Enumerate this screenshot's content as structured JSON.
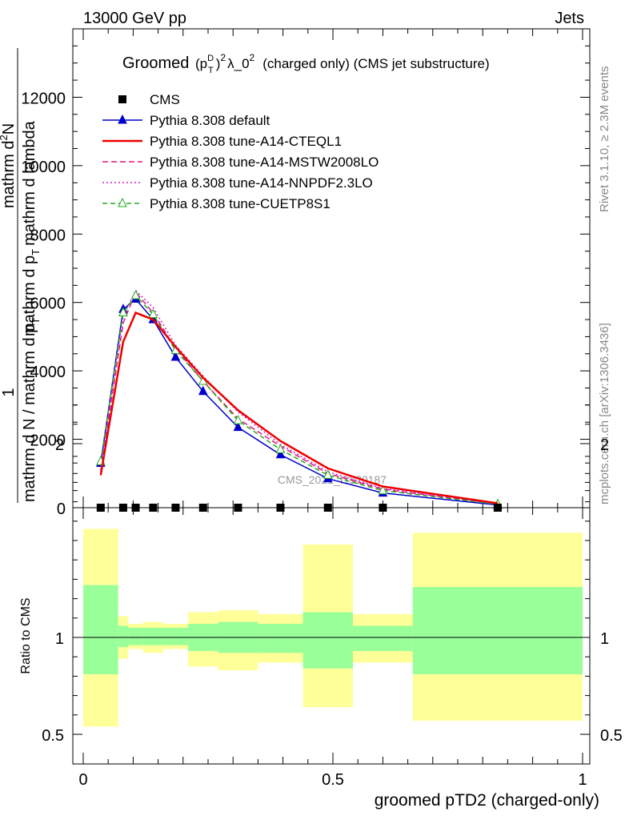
{
  "header": {
    "left": "13000 GeV pp",
    "right": "Jets"
  },
  "side": {
    "rivet": "Rivet 3.1.10, ≥ 2.3M events",
    "mcplots": "mcplots.cern.ch [arXiv:1306.3436]"
  },
  "watermark": "CMS_2021_I1920187",
  "chart_data": [
    {
      "type": "line",
      "panel": "main",
      "title": "Groomed (p_T^D)^2 λ_0^2 (charged only) (CMS jet substructure)",
      "title_parts": {
        "groomed": "Groomed",
        "p": "(p",
        "sup_d": "D",
        "sub_t": "T",
        "close": ")",
        "sup_2": "2",
        "lambda": "λ_0",
        "rest": "(charged only) (CMS jet substructure)"
      },
      "ylabel": "1 / mathrm d N / mathrm d p_T mathrm d p_T mathrm d lambda mathrm d^2N",
      "ylabel_parts": {
        "one": "1",
        "denominator": "mathrm d N / mathrm d p",
        "denominator_sub": "T",
        "numerator_a": "mathrm d",
        "numerator_sup": "2",
        "numerator_b": "N",
        "overlay_a": "mathrm d p",
        "overlay_sub": "T",
        "overlay_b": "mathrm d lambda"
      },
      "ylim": [
        0,
        14000
      ],
      "yticks": [
        "0",
        "2000",
        "4000",
        "6000",
        "8000",
        "10000",
        "12000"
      ],
      "x": [
        0.035,
        0.08,
        0.105,
        0.14,
        0.185,
        0.24,
        0.31,
        0.395,
        0.49,
        0.6,
        0.83
      ],
      "series": [
        {
          "name": "CMS",
          "marker": "square",
          "color": "#000000",
          "values": [
            0,
            0,
            0,
            0,
            0,
            0,
            0,
            0,
            0,
            0,
            0
          ]
        },
        {
          "name": "Pythia 8.308 default",
          "marker": "triangle",
          "color": "#0000cc",
          "dash": "",
          "values": [
            1300,
            5800,
            6100,
            5500,
            4400,
            3400,
            2350,
            1550,
            850,
            430,
            80
          ]
        },
        {
          "name": "Pythia 8.308 tune-A14-CTEQL1",
          "marker": "none",
          "color": "#ee0000",
          "dash": "",
          "values": [
            950,
            4850,
            5700,
            5500,
            4700,
            3800,
            2850,
            1950,
            1150,
            620,
            130
          ]
        },
        {
          "name": "Pythia 8.308 tune-A14-MSTW2008LO",
          "marker": "none",
          "color": "#e0157a",
          "dash": "7,4",
          "values": [
            1050,
            5400,
            6300,
            5700,
            4650,
            3700,
            2600,
            1800,
            1000,
            540,
            110
          ]
        },
        {
          "name": "Pythia 8.308 tune-A14-NNPDF2.3LO",
          "marker": "none",
          "color": "#d020d0",
          "dash": "2,3",
          "values": [
            1100,
            5600,
            6350,
            5850,
            4750,
            3850,
            2800,
            1850,
            1050,
            560,
            110
          ]
        },
        {
          "name": "Pythia 8.308 tune-CUETP8S1",
          "marker": "open-triangle",
          "color": "#22aa22",
          "dash": "6,4",
          "values": [
            1350,
            5700,
            6200,
            5650,
            4600,
            3700,
            2550,
            1700,
            950,
            500,
            100
          ]
        }
      ],
      "legend": "top-left"
    },
    {
      "type": "area",
      "panel": "ratio",
      "ylabel": "Ratio to CMS",
      "xlabel": "groomed pTD2 (charged-only)",
      "xlim": [
        0,
        1
      ],
      "xticks": [
        "0",
        "0.5",
        "1"
      ],
      "ylim": [
        0.35,
        2.3
      ],
      "yticks": [
        "0.5",
        "1",
        "2"
      ],
      "reference": 1,
      "bins": [
        {
          "x0": 0.0,
          "x1": 0.07,
          "stat_lo": 0.81,
          "stat_hi": 1.27,
          "tot_lo": 0.54,
          "tot_hi": 1.56
        },
        {
          "x0": 0.07,
          "x1": 0.09,
          "stat_lo": 0.95,
          "stat_hi": 1.06,
          "tot_lo": 0.89,
          "tot_hi": 1.11
        },
        {
          "x0": 0.09,
          "x1": 0.12,
          "stat_lo": 0.96,
          "stat_hi": 1.05,
          "tot_lo": 0.94,
          "tot_hi": 1.07
        },
        {
          "x0": 0.12,
          "x1": 0.16,
          "stat_lo": 0.96,
          "stat_hi": 1.05,
          "tot_lo": 0.92,
          "tot_hi": 1.08
        },
        {
          "x0": 0.16,
          "x1": 0.21,
          "stat_lo": 0.96,
          "stat_hi": 1.05,
          "tot_lo": 0.94,
          "tot_hi": 1.07
        },
        {
          "x0": 0.21,
          "x1": 0.27,
          "stat_lo": 0.93,
          "stat_hi": 1.07,
          "tot_lo": 0.85,
          "tot_hi": 1.13
        },
        {
          "x0": 0.27,
          "x1": 0.35,
          "stat_lo": 0.92,
          "stat_hi": 1.08,
          "tot_lo": 0.83,
          "tot_hi": 1.14
        },
        {
          "x0": 0.35,
          "x1": 0.44,
          "stat_lo": 0.92,
          "stat_hi": 1.07,
          "tot_lo": 0.87,
          "tot_hi": 1.12
        },
        {
          "x0": 0.44,
          "x1": 0.54,
          "stat_lo": 0.84,
          "stat_hi": 1.13,
          "tot_lo": 0.64,
          "tot_hi": 1.48
        },
        {
          "x0": 0.54,
          "x1": 0.66,
          "stat_lo": 0.93,
          "stat_hi": 1.06,
          "tot_lo": 0.87,
          "tot_hi": 1.12
        },
        {
          "x0": 0.66,
          "x1": 1.0,
          "stat_lo": 0.81,
          "stat_hi": 1.26,
          "tot_lo": 0.57,
          "tot_hi": 1.54
        }
      ],
      "colors": {
        "stat": "#99ff99",
        "total": "#ffff99"
      }
    }
  ]
}
